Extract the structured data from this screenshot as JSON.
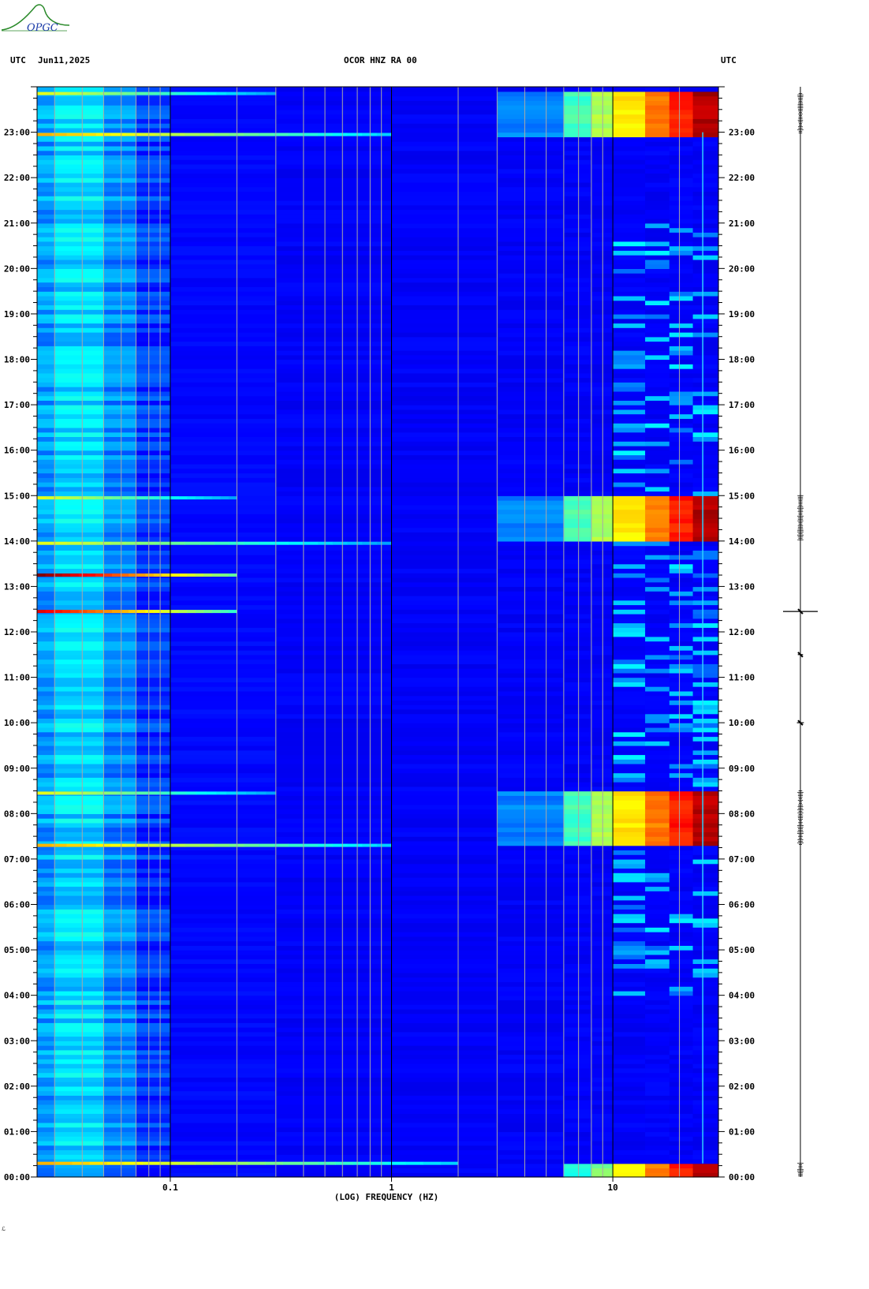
{
  "header": {
    "left_label": "UTC",
    "date": "Jun11,2025",
    "station": "OCOR HNZ RA 00",
    "right_label": "UTC"
  },
  "logo": {
    "text": "OPGC"
  },
  "colors": {
    "background": "#0000b4",
    "low": "#0018d8",
    "mid": "#00b4ff",
    "high": "#ffff00",
    "peak": "#8b0000",
    "grid_light": "#a8a8a8",
    "grid_dark": "#000000"
  },
  "chart_data": {
    "type": "heatmap",
    "xlabel": "(LOG) FREQUENCY (HZ)",
    "x_scale": "log",
    "xlim": [
      0.025,
      30
    ],
    "x_ticks": [
      {
        "value": 0.1,
        "label": "0.1"
      },
      {
        "value": 1,
        "label": "1"
      },
      {
        "value": 10,
        "label": "10"
      }
    ],
    "y_unit": "hours UTC",
    "ylim": [
      0,
      24
    ],
    "y_ticks": [
      {
        "value": 0,
        "label": "00:00"
      },
      {
        "value": 1,
        "label": "01:00"
      },
      {
        "value": 2,
        "label": "02:00"
      },
      {
        "value": 3,
        "label": "03:00"
      },
      {
        "value": 4,
        "label": "04:00"
      },
      {
        "value": 5,
        "label": "05:00"
      },
      {
        "value": 6,
        "label": "06:00"
      },
      {
        "value": 7,
        "label": "07:00"
      },
      {
        "value": 8,
        "label": "08:00"
      },
      {
        "value": 9,
        "label": "09:00"
      },
      {
        "value": 10,
        "label": "10:00"
      },
      {
        "value": 11,
        "label": "11:00"
      },
      {
        "value": 12,
        "label": "12:00"
      },
      {
        "value": 13,
        "label": "13:00"
      },
      {
        "value": 14,
        "label": "14:00"
      },
      {
        "value": 15,
        "label": "15:00"
      },
      {
        "value": 16,
        "label": "16:00"
      },
      {
        "value": 17,
        "label": "17:00"
      },
      {
        "value": 18,
        "label": "18:00"
      },
      {
        "value": 19,
        "label": "19:00"
      },
      {
        "value": 20,
        "label": "20:00"
      },
      {
        "value": 21,
        "label": "21:00"
      },
      {
        "value": 22,
        "label": "22:00"
      },
      {
        "value": 23,
        "label": "23:00"
      }
    ],
    "grid": true,
    "high_energy_blocks": [
      {
        "t_start": 0.0,
        "t_end": 0.3,
        "f_start": 8
      },
      {
        "t_start": 7.3,
        "t_end": 8.5,
        "f_start": 7
      },
      {
        "t_start": 14.0,
        "t_end": 15.0,
        "f_start": 7
      },
      {
        "t_start": 22.95,
        "t_end": 23.85,
        "f_start": 7
      }
    ],
    "broadband_events": [
      {
        "t": 0.3,
        "strength": 0.7,
        "f_end": 2
      },
      {
        "t": 7.3,
        "strength": 0.7,
        "f_end": 1
      },
      {
        "t": 8.45,
        "strength": 0.6,
        "f_end": 0.3
      },
      {
        "t": 12.45,
        "strength": 0.9,
        "f_end": 0.2
      },
      {
        "t": 13.25,
        "strength": 1.0,
        "f_end": 0.2
      },
      {
        "t": 13.95,
        "strength": 0.6,
        "f_end": 1
      },
      {
        "t": 14.95,
        "strength": 0.6,
        "f_end": 0.2
      },
      {
        "t": 22.95,
        "strength": 0.7,
        "f_end": 1
      },
      {
        "t": 23.85,
        "strength": 0.6,
        "f_end": 0.3
      }
    ],
    "narrowband_lines": [
      {
        "f": 25.5,
        "t_start": 0.3,
        "t_end": 23.0
      }
    ],
    "seismogram_events": [
      {
        "t": 12.45,
        "amplitude": 1.0
      },
      {
        "t": 10.0,
        "amplitude": 0.2
      },
      {
        "t": 11.5,
        "amplitude": 0.15
      }
    ]
  },
  "footer": {
    "mark": "ℒ"
  }
}
